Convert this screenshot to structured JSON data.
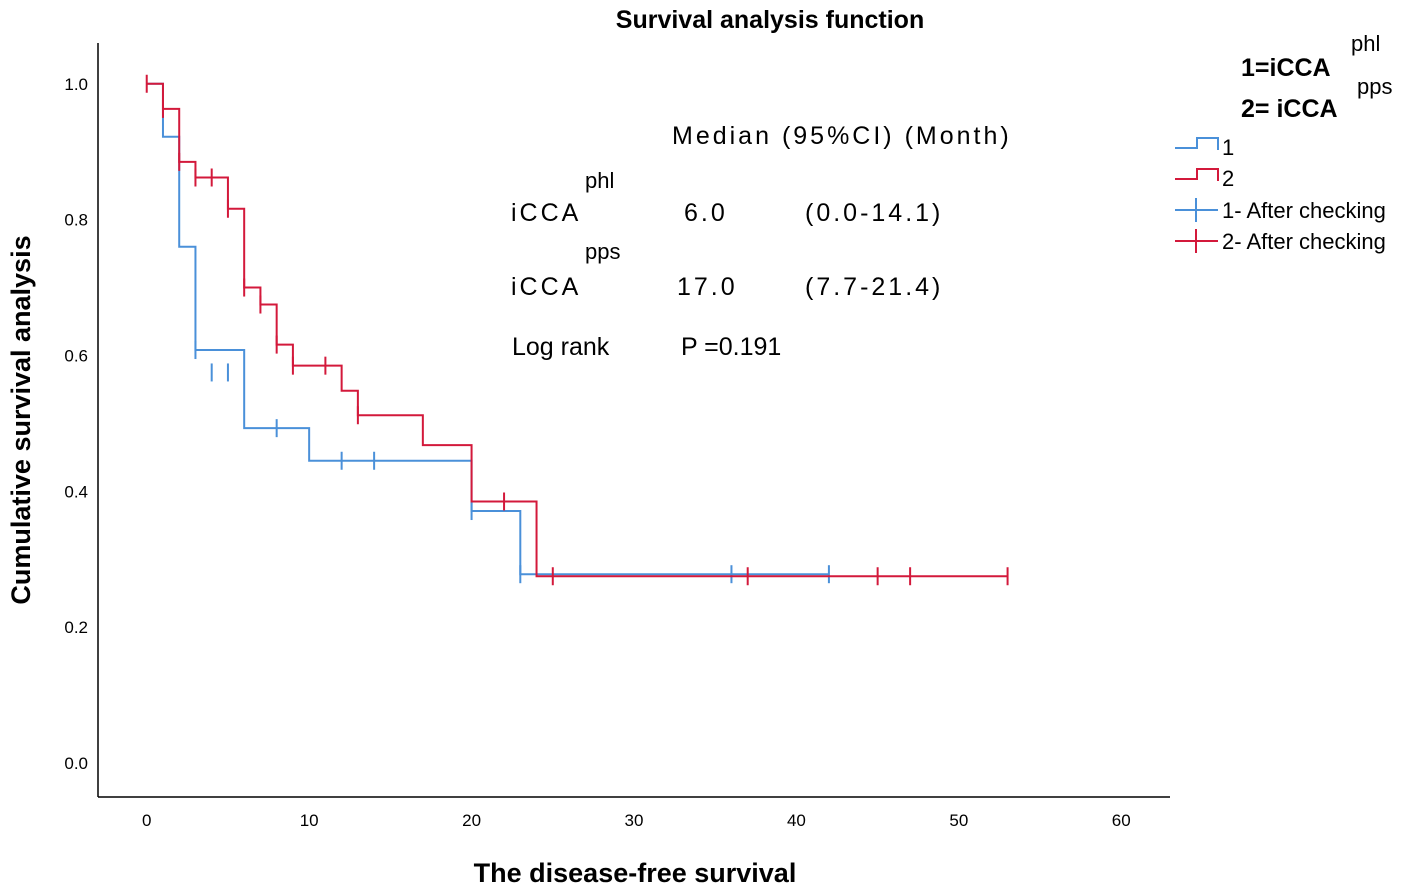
{
  "chart_data": {
    "type": "line",
    "subtype": "kaplan-meier step",
    "title": "Survival analysis function",
    "xlabel": "The disease-free survival",
    "ylabel": "Cumulative survival analysis",
    "xlim": [
      -3,
      63
    ],
    "ylim": [
      -0.05,
      1.06
    ],
    "xticks": [
      0,
      10,
      20,
      30,
      40,
      50,
      60
    ],
    "yticks": [
      0.0,
      0.2,
      0.4,
      0.6,
      0.8,
      1.0
    ],
    "xtick_labels": [
      "0",
      "10",
      "20",
      "30",
      "40",
      "50",
      "60"
    ],
    "ytick_labels": [
      "0.0",
      "0.2",
      "0.4",
      "0.6",
      "0.8",
      "1.0"
    ],
    "grid": false,
    "legend_position": "right",
    "legend_header": {
      "line1_base": "1=iCCA",
      "line1_sup": "phl",
      "line2_base": "2= iCCA",
      "line2_sup": "pps"
    },
    "series": [
      {
        "name": "1",
        "censored_label": "1- After checking",
        "color": "#4a90d9",
        "steps": [
          [
            0,
            1.0
          ],
          [
            1,
            0.922
          ],
          [
            2,
            0.76
          ],
          [
            3,
            0.608
          ],
          [
            6,
            0.493
          ],
          [
            10,
            0.445
          ],
          [
            20,
            0.371
          ],
          [
            23,
            0.278
          ],
          [
            42,
            0.278
          ]
        ],
        "censored": [
          [
            3,
            0.608
          ],
          [
            4,
            0.575
          ],
          [
            5,
            0.575
          ],
          [
            8,
            0.493
          ],
          [
            12,
            0.445
          ],
          [
            14,
            0.445
          ],
          [
            20,
            0.371
          ],
          [
            23,
            0.278
          ],
          [
            36,
            0.278
          ],
          [
            42,
            0.278
          ]
        ]
      },
      {
        "name": "2",
        "censored_label": "2- After checking",
        "color": "#d3193b",
        "steps": [
          [
            0,
            1.0
          ],
          [
            1,
            0.963
          ],
          [
            2,
            0.885
          ],
          [
            3,
            0.862
          ],
          [
            5,
            0.816
          ],
          [
            6,
            0.7
          ],
          [
            7,
            0.675
          ],
          [
            8,
            0.616
          ],
          [
            9,
            0.585
          ],
          [
            12,
            0.548
          ],
          [
            13,
            0.512
          ],
          [
            17,
            0.468
          ],
          [
            20,
            0.385
          ],
          [
            24,
            0.275
          ],
          [
            53,
            0.275
          ]
        ],
        "censored": [
          [
            0,
            1.0
          ],
          [
            1,
            0.963
          ],
          [
            2,
            0.885
          ],
          [
            3,
            0.862
          ],
          [
            4,
            0.862
          ],
          [
            5,
            0.816
          ],
          [
            6,
            0.7
          ],
          [
            7,
            0.675
          ],
          [
            8,
            0.616
          ],
          [
            9,
            0.585
          ],
          [
            11,
            0.585
          ],
          [
            13,
            0.512
          ],
          [
            22,
            0.385
          ],
          [
            25,
            0.275
          ],
          [
            37,
            0.275
          ],
          [
            45,
            0.275
          ],
          [
            47,
            0.275
          ],
          [
            53,
            0.275
          ]
        ]
      }
    ],
    "annotations": {
      "header": "Median (95%CI) (Month)",
      "rows": [
        {
          "label": "iCCA",
          "sup": "phl",
          "median": "6.0",
          "ci": "(0.0-14.1)"
        },
        {
          "label": "iCCA",
          "sup": "pps",
          "median": "17.0",
          "ci": "(7.7-21.4)"
        }
      ],
      "logrank_label": "Log rank",
      "logrank_value": "P =0.191"
    }
  }
}
